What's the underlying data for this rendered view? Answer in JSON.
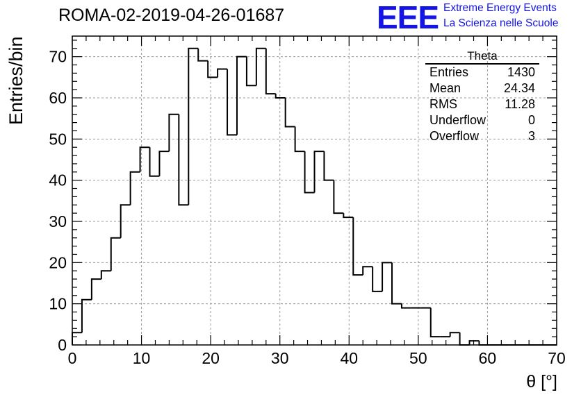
{
  "header": {
    "run_title": "ROMA-02-2019-04-26-01687",
    "logo_text": "EEE",
    "logo_line1": "Extreme Energy Events",
    "logo_line2": "La Scienza nelle Scuole",
    "logo_color": "#1414e6"
  },
  "stats": {
    "title": "Theta",
    "rows": [
      {
        "label": "Entries",
        "value": "1430"
      },
      {
        "label": "Mean",
        "value": "24.34"
      },
      {
        "label": "RMS",
        "value": "11.28"
      },
      {
        "label": "Underflow",
        "value": "0"
      },
      {
        "label": "Overflow",
        "value": "3"
      }
    ]
  },
  "chart_data": {
    "type": "bar",
    "histogram": true,
    "xlabel": "θ [°]",
    "ylabel": "Entries/bin",
    "xlim": [
      0,
      70
    ],
    "ylim": [
      0,
      75
    ],
    "xticks": [
      0,
      10,
      20,
      30,
      40,
      50,
      60,
      70
    ],
    "yticks": [
      0,
      10,
      20,
      30,
      40,
      50,
      60,
      70
    ],
    "grid": true,
    "bin_width": 1.4,
    "values": [
      3,
      11,
      16,
      18,
      26,
      34,
      42,
      48,
      41,
      47,
      56,
      34,
      72,
      69,
      65,
      67,
      51,
      70,
      63,
      72,
      61,
      60,
      53,
      47,
      37,
      47,
      40,
      32,
      31,
      17,
      19,
      13,
      20,
      10,
      9,
      9,
      9,
      2,
      2,
      3,
      0,
      1,
      0,
      0,
      0,
      0,
      0,
      0,
      0,
      0
    ],
    "line_color": "#000000",
    "grid_color": "#9a9a9a"
  }
}
